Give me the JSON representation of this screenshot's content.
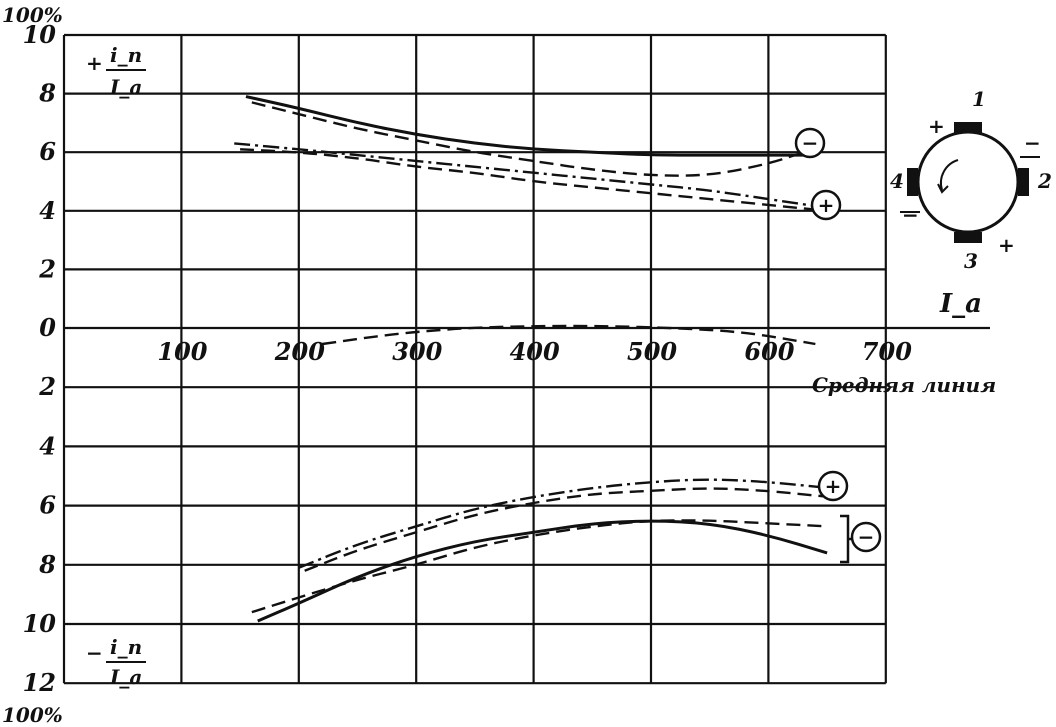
{
  "chart_data": {
    "type": "line",
    "y_unit_top": "100%",
    "y_unit_bottom": "100%",
    "upper_ylabel": {
      "sign": "+",
      "numerator": "i_п",
      "denominator": "I_a"
    },
    "lower_ylabel": {
      "sign": "−",
      "numerator": "i_п",
      "denominator": "I_a"
    },
    "xlabel": "I_a",
    "baseline_label": "Средняя линия",
    "x_ticks": [
      "100",
      "200",
      "300",
      "400",
      "500",
      "600",
      "700"
    ],
    "upper_y_ticks": [
      "10",
      "8",
      "6",
      "4",
      "2",
      "0"
    ],
    "lower_y_ticks": [
      "2",
      "4",
      "6",
      "8",
      "10",
      "12"
    ],
    "xlim": [
      0,
      700
    ],
    "upper_ylim": [
      0,
      10
    ],
    "lower_ylim": [
      0,
      12
    ],
    "markers": {
      "plus": "+",
      "minus": "−"
    },
    "inset": {
      "description_labels": [
        "1",
        "2",
        "3",
        "4"
      ],
      "signs": [
        "+",
        "−",
        "+",
        "−"
      ]
    },
    "series": [
      {
        "region": "upper",
        "style": "solid",
        "group": "minus",
        "x": [
          155,
          200,
          250,
          300,
          350,
          400,
          450,
          500,
          550,
          600,
          630
        ],
        "y": [
          7.9,
          7.5,
          7.0,
          6.6,
          6.3,
          6.1,
          6.0,
          5.9,
          5.9,
          5.9,
          5.9
        ]
      },
      {
        "region": "upper",
        "style": "dashed",
        "group": "minus",
        "x": [
          160,
          200,
          250,
          300,
          350,
          400,
          450,
          500,
          550,
          600,
          630
        ],
        "y": [
          7.7,
          7.3,
          6.8,
          6.4,
          6.0,
          5.7,
          5.4,
          5.2,
          5.2,
          5.6,
          6.0
        ]
      },
      {
        "region": "upper",
        "style": "dashdot",
        "group": "plus",
        "x": [
          145,
          200,
          250,
          300,
          350,
          400,
          450,
          500,
          550,
          600,
          650
        ],
        "y": [
          6.3,
          6.1,
          5.9,
          5.7,
          5.5,
          5.3,
          5.1,
          4.9,
          4.7,
          4.4,
          4.1
        ]
      },
      {
        "region": "upper",
        "style": "dashed",
        "group": "plus",
        "x": [
          150,
          200,
          250,
          300,
          350,
          400,
          450,
          500,
          550,
          600,
          650
        ],
        "y": [
          6.1,
          6.0,
          5.8,
          5.5,
          5.3,
          5.0,
          4.8,
          4.6,
          4.4,
          4.2,
          4.0
        ]
      },
      {
        "region": "middle",
        "style": "dashed",
        "group": "baseline",
        "x": [
          220,
          280,
          340,
          400,
          460,
          520,
          580,
          640
        ],
        "y": [
          -0.8,
          -0.3,
          0.0,
          0.1,
          0.1,
          0.0,
          -0.2,
          -0.8
        ]
      },
      {
        "region": "lower",
        "style": "dashdot",
        "group": "plus",
        "x": [
          200,
          250,
          300,
          350,
          400,
          450,
          500,
          550,
          600,
          650
        ],
        "y": [
          8.1,
          7.3,
          6.7,
          6.1,
          5.7,
          5.4,
          5.2,
          5.1,
          5.2,
          5.4
        ]
      },
      {
        "region": "lower",
        "style": "dashed",
        "group": "plus",
        "x": [
          205,
          250,
          300,
          350,
          400,
          450,
          500,
          550,
          600,
          650
        ],
        "y": [
          8.2,
          7.5,
          6.9,
          6.3,
          5.9,
          5.6,
          5.5,
          5.4,
          5.5,
          5.7
        ]
      },
      {
        "region": "lower",
        "style": "solid",
        "group": "minus",
        "x": [
          165,
          200,
          250,
          300,
          350,
          400,
          450,
          500,
          550,
          600,
          650
        ],
        "y": [
          9.9,
          9.3,
          8.4,
          7.7,
          7.2,
          6.9,
          6.6,
          6.5,
          6.6,
          7.0,
          7.6
        ]
      },
      {
        "region": "lower",
        "style": "dashed",
        "group": "minus",
        "x": [
          160,
          200,
          250,
          300,
          350,
          400,
          450,
          500,
          550,
          600,
          650
        ],
        "y": [
          9.6,
          9.1,
          8.5,
          8.0,
          7.4,
          7.0,
          6.7,
          6.5,
          6.5,
          6.6,
          6.7
        ]
      }
    ]
  }
}
